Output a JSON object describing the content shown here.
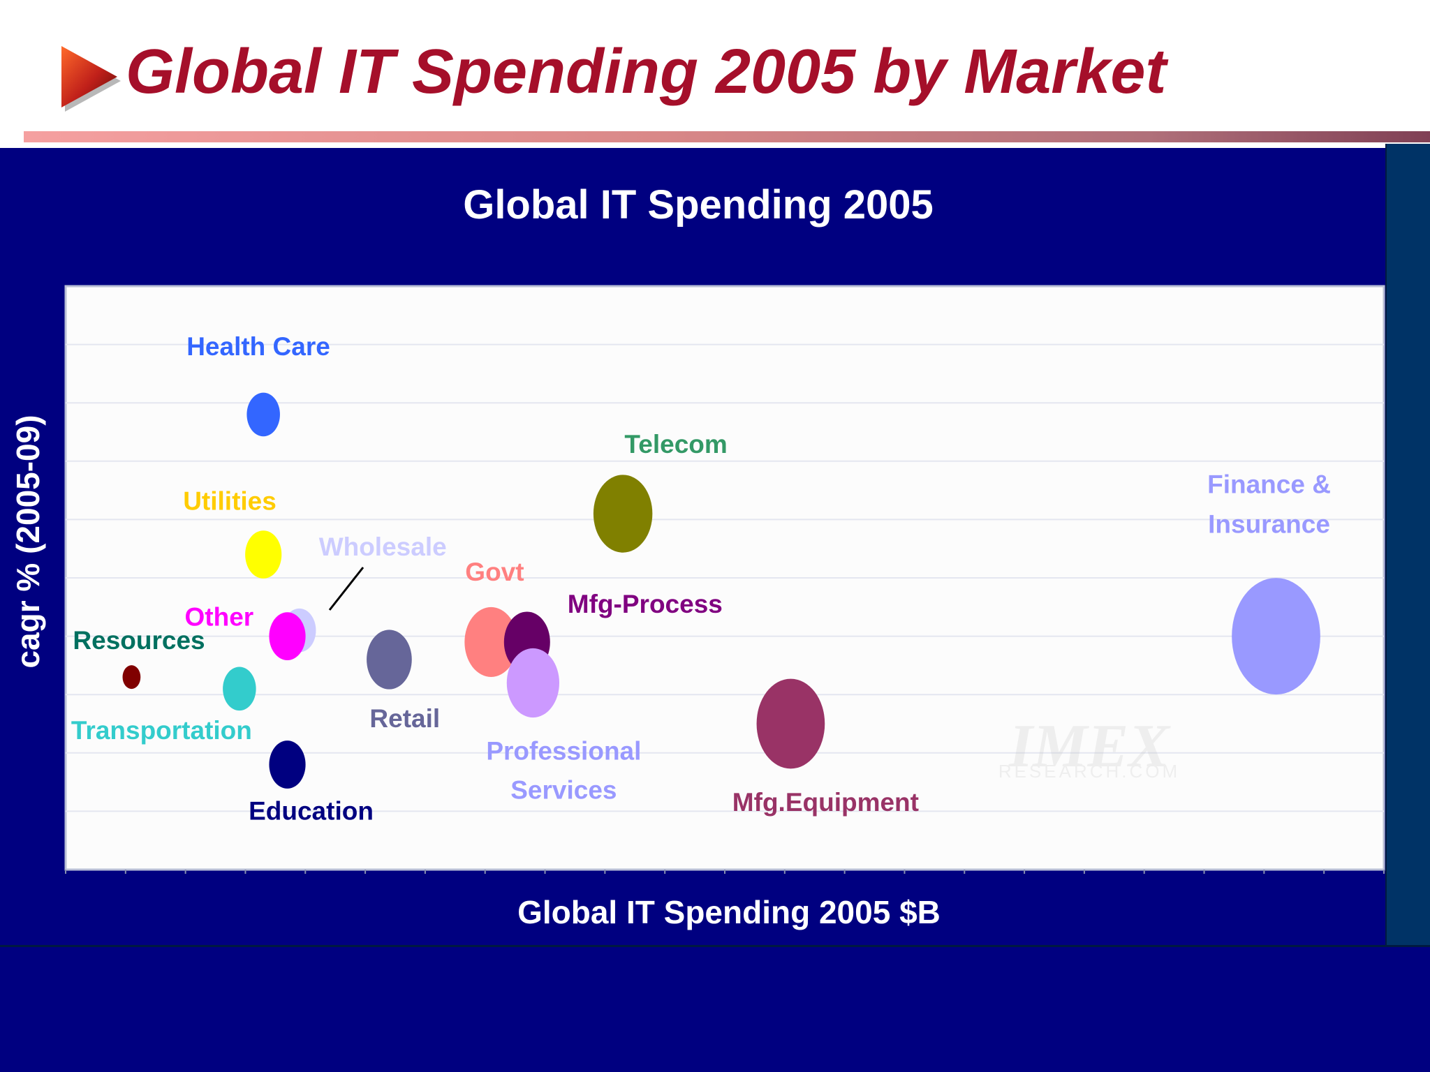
{
  "slide": {
    "title": "Global IT Spending 2005 by Market"
  },
  "colors": {
    "title": "#a50f2a",
    "panel": "#000080",
    "plot_background": "#fcfcfc"
  },
  "chart_data": {
    "type": "bubble",
    "title": "Global IT Spending 2005",
    "xlabel": "Global IT Spending 2005 $B",
    "ylabel": "cagr % (2005-09)",
    "x_tick_labels_shown": false,
    "y_tick_labels_shown": false,
    "grid": "horizontal",
    "xlim": [
      0,
      22
    ],
    "ylim": [
      0,
      10
    ],
    "series": [
      {
        "name": "Health Care",
        "x": 3.3,
        "y": 7.8,
        "size": 0.72,
        "color": "#3366ff"
      },
      {
        "name": "Utilities",
        "x": 3.3,
        "y": 5.4,
        "size": 0.79,
        "color": "#ffff00"
      },
      {
        "name": "Wholesale",
        "x": 3.9,
        "y": 4.1,
        "size": 0.72,
        "color": "#ccccff"
      },
      {
        "name": "Other",
        "x": 3.7,
        "y": 4.0,
        "size": 0.79,
        "color": "#ff00ff"
      },
      {
        "name": "Resources",
        "x": 1.1,
        "y": 3.3,
        "size": 0.39,
        "color": "#800000"
      },
      {
        "name": "Transportation",
        "x": 2.9,
        "y": 3.1,
        "size": 0.72,
        "color": "#33cccc"
      },
      {
        "name": "Education",
        "x": 3.7,
        "y": 1.8,
        "size": 0.79,
        "color": "#000080"
      },
      {
        "name": "Retail",
        "x": 5.4,
        "y": 3.6,
        "size": 0.98,
        "color": "#666699"
      },
      {
        "name": "Govt",
        "x": 7.1,
        "y": 3.9,
        "size": 1.15,
        "color": "#ff8080"
      },
      {
        "name": "Mfg-Process",
        "x": 7.7,
        "y": 3.9,
        "size": 1.0,
        "color": "#660066"
      },
      {
        "name": "Professional Services",
        "x": 7.8,
        "y": 3.2,
        "size": 1.14,
        "color": "#cc99ff"
      },
      {
        "name": "Telecom",
        "x": 9.3,
        "y": 6.1,
        "size": 1.28,
        "color": "#808000"
      },
      {
        "name": "Mfg.Equipment",
        "x": 12.1,
        "y": 2.5,
        "size": 1.48,
        "color": "#993366"
      },
      {
        "name": "Finance & Insurance",
        "x": 20.2,
        "y": 4.0,
        "size": 1.92,
        "color": "#9999ff"
      }
    ],
    "labels": [
      {
        "series": "Health Care",
        "lines": [
          "Health Care"
        ],
        "color": "#3366ff"
      },
      {
        "series": "Utilities",
        "lines": [
          "Utilities"
        ],
        "color": "#ffcc00"
      },
      {
        "series": "Wholesale",
        "lines": [
          "Wholesale"
        ],
        "color": "#ccccff"
      },
      {
        "series": "Other",
        "lines": [
          "Other"
        ],
        "color": "#ff00ff"
      },
      {
        "series": "Resources",
        "lines": [
          "Resources"
        ],
        "color": "#007060"
      },
      {
        "series": "Transportation",
        "lines": [
          "Transportation"
        ],
        "color": "#33cccc"
      },
      {
        "series": "Education",
        "lines": [
          "Education"
        ],
        "color": "#000080"
      },
      {
        "series": "Retail",
        "lines": [
          "Retail"
        ],
        "color": "#666699"
      },
      {
        "series": "Govt",
        "lines": [
          "Govt"
        ],
        "color": "#ff8080"
      },
      {
        "series": "Mfg-Process",
        "lines": [
          "Mfg-Process"
        ],
        "color": "#800080"
      },
      {
        "series": "Professional Services",
        "lines": [
          "Professional",
          "Services"
        ],
        "color": "#9999ff"
      },
      {
        "series": "Telecom",
        "lines": [
          "Telecom"
        ],
        "color": "#339966"
      },
      {
        "series": "Mfg.Equipment",
        "lines": [
          "Mfg.Equipment"
        ],
        "color": "#993366"
      },
      {
        "series": "Finance & Insurance",
        "lines": [
          "Finance &",
          "Insurance"
        ],
        "color": "#9999ff"
      }
    ],
    "watermark": [
      "IMEX",
      "RESEARCH.COM"
    ]
  }
}
